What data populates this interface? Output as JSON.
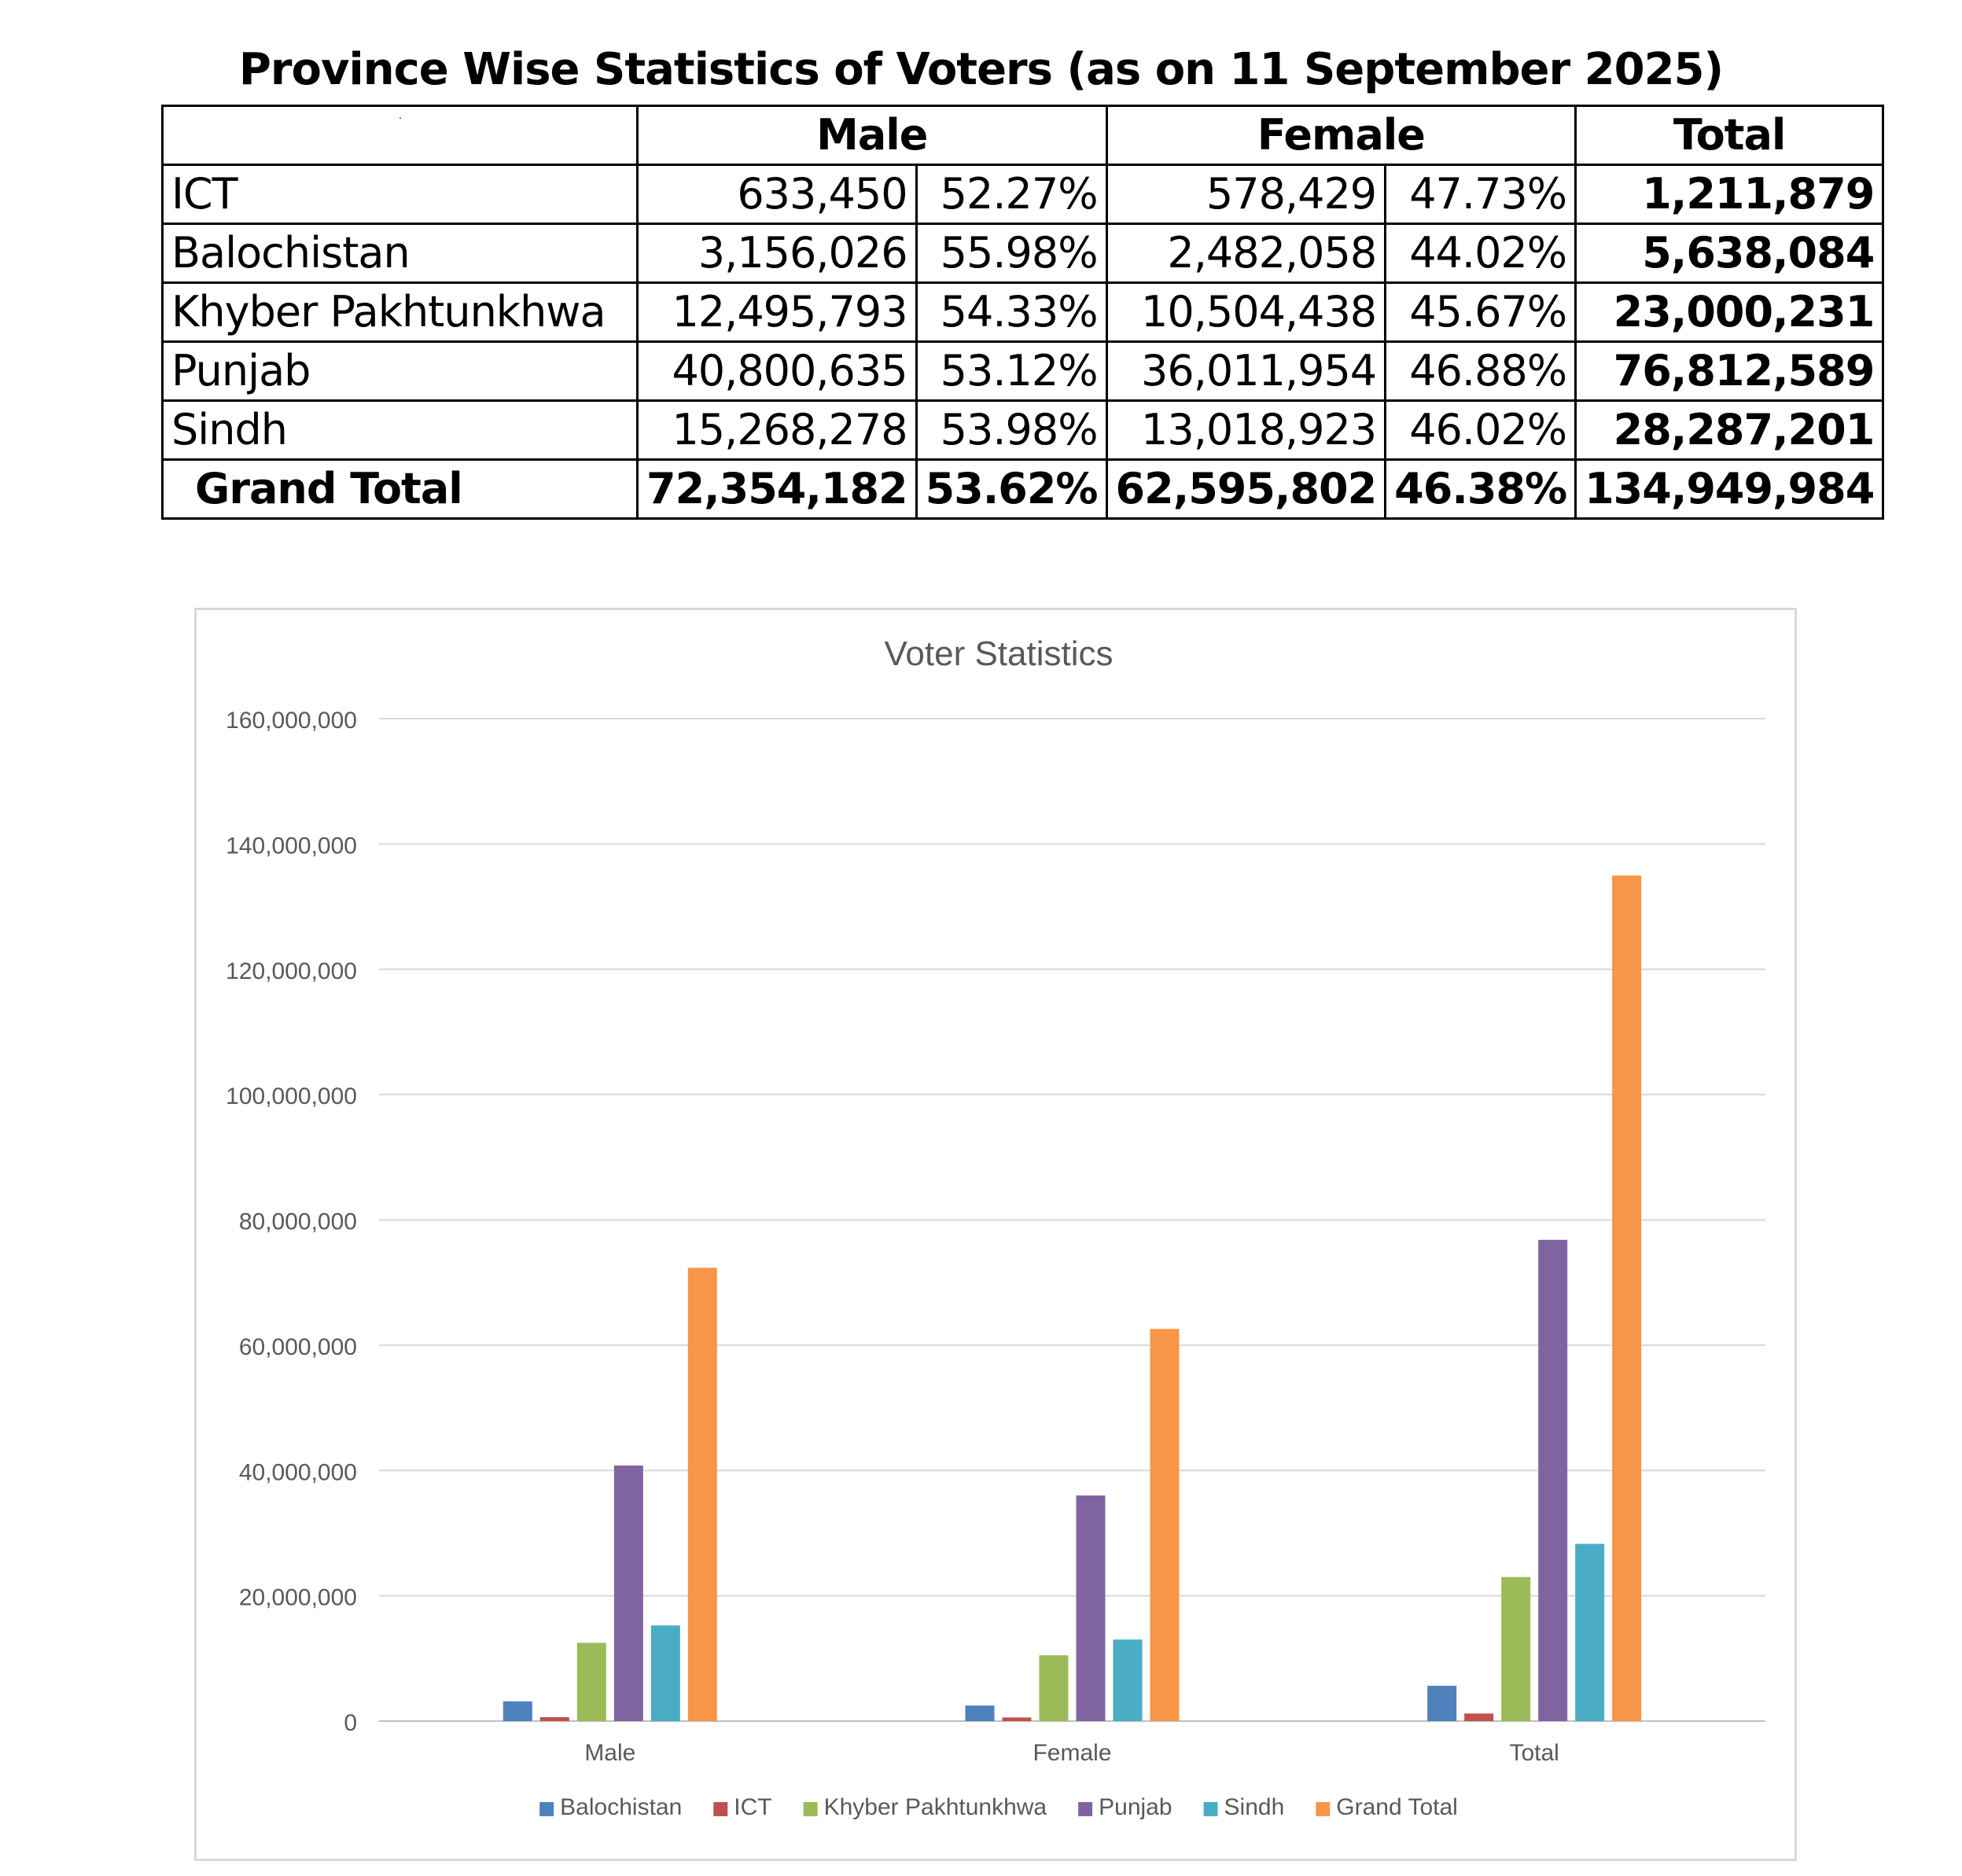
{
  "table": {
    "title": "Province Wise Statistics of Voters (as on 11 September 2025)",
    "headers": {
      "corner": ".",
      "male": "Male",
      "female": "Female",
      "total": "Total"
    },
    "rows": [
      {
        "name": "ICT",
        "male": "633,450",
        "male_pct": "52.27%",
        "female": "578,429",
        "female_pct": "47.73%",
        "total": "1,211,879"
      },
      {
        "name": "Balochistan",
        "male": "3,156,026",
        "male_pct": "55.98%",
        "female": "2,482,058",
        "female_pct": "44.02%",
        "total": "5,638,084"
      },
      {
        "name": "Khyber Pakhtunkhwa",
        "male": "12,495,793",
        "male_pct": "54.33%",
        "female": "10,504,438",
        "female_pct": "45.67%",
        "total": "23,000,231"
      },
      {
        "name": "Punjab",
        "male": "40,800,635",
        "male_pct": "53.12%",
        "female": "36,011,954",
        "female_pct": "46.88%",
        "total": "76,812,589"
      },
      {
        "name": "Sindh",
        "male": "15,268,278",
        "male_pct": "53.98%",
        "female": "13,018,923",
        "female_pct": "46.02%",
        "total": "28,287,201"
      }
    ],
    "grand_total": {
      "name": "Grand Total",
      "male": "72,354,182",
      "male_pct": "53.62%",
      "female": "62,595,802",
      "female_pct": "46.38%",
      "total": "134,949,984"
    }
  },
  "chart_data": {
    "type": "bar",
    "title": "Voter Statistics",
    "categories": [
      "Male",
      "Female",
      "Total"
    ],
    "ylim": [
      0,
      160000000
    ],
    "yticks": [
      0,
      20000000,
      40000000,
      60000000,
      80000000,
      100000000,
      120000000,
      140000000,
      160000000
    ],
    "ytick_labels": [
      "0",
      "20,000,000",
      "40,000,000",
      "60,000,000",
      "80,000,000",
      "100,000,000",
      "120,000,000",
      "140,000,000",
      "160,000,000"
    ],
    "grid": true,
    "legend": "bottom",
    "series": [
      {
        "name": "Balochistan",
        "color": "#4f81bd",
        "values": [
          3156026,
          2482058,
          5638084
        ]
      },
      {
        "name": "ICT",
        "color": "#c0504d",
        "values": [
          633450,
          578429,
          1211879
        ]
      },
      {
        "name": "Khyber Pakhtunkhwa",
        "color": "#9bbb59",
        "values": [
          12495793,
          10504438,
          23000231
        ]
      },
      {
        "name": "Punjab",
        "color": "#8064a2",
        "values": [
          40800635,
          36011954,
          76812589
        ]
      },
      {
        "name": "Sindh",
        "color": "#4bacc6",
        "values": [
          15268278,
          13018923,
          28287201
        ]
      },
      {
        "name": "Grand Total",
        "color": "#f79646",
        "values": [
          72354182,
          62595802,
          134949984
        ]
      }
    ]
  }
}
